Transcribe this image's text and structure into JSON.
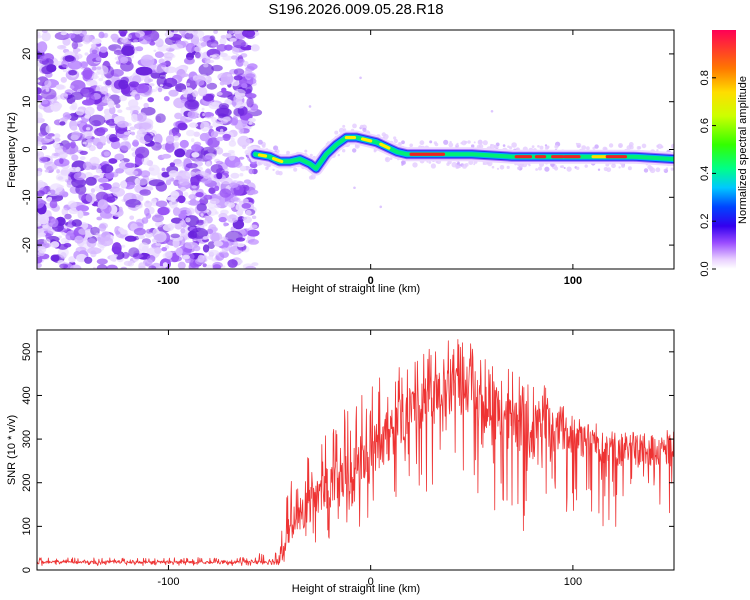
{
  "figure": {
    "title": "S196.2026.009.05.28.R18"
  },
  "chart_data": [
    {
      "type": "heatmap",
      "name": "spectrogram",
      "xlabel": "Height of straight line (km)",
      "ylabel": "Frequency (Hz)",
      "xlim": [
        -165,
        150
      ],
      "ylim": [
        -25,
        25
      ],
      "xticks": [
        -100,
        0,
        100
      ],
      "yticks": [
        -20,
        -10,
        0,
        10,
        20
      ],
      "noise_region_x": [
        -165,
        -57
      ],
      "track": {
        "x": [
          -57,
          -50,
          -45,
          -40,
          -35,
          -30,
          -27,
          -22,
          -17,
          -12,
          -7,
          -2,
          3,
          8,
          13,
          18,
          30,
          50,
          70,
          90,
          110,
          130,
          150
        ],
        "freq": [
          -1,
          -1.5,
          -2.5,
          -2.5,
          -2,
          -3,
          -4,
          -1,
          1,
          2.5,
          2.5,
          2,
          1.5,
          0.5,
          -0.5,
          -1,
          -1,
          -1,
          -1.5,
          -1.5,
          -1.5,
          -1.5,
          -2
        ]
      },
      "colorbar": {
        "label": "Normalized spectral amplitude",
        "range": [
          0,
          1
        ],
        "ticks": [
          "0.0",
          "0.2",
          "0.4",
          "0.6",
          "0.8"
        ]
      }
    },
    {
      "type": "line",
      "name": "snr",
      "xlabel": "Height of straight line (km)",
      "ylabel": "SNR (10 * v/v)",
      "xlim": [
        -165,
        150
      ],
      "ylim": [
        0,
        550
      ],
      "xticks": [
        -100,
        0,
        100
      ],
      "yticks": [
        0,
        100,
        200,
        300,
        400,
        500
      ],
      "color": "#ee3333",
      "envelope": {
        "x": [
          -165,
          -100,
          -60,
          -45,
          -40,
          -30,
          -20,
          -10,
          0,
          10,
          20,
          30,
          40,
          50,
          55,
          60,
          70,
          80,
          85,
          90,
          100,
          110,
          120,
          130,
          140,
          150
        ],
        "baseline": [
          18,
          18,
          18,
          20,
          100,
          150,
          190,
          220,
          260,
          310,
          370,
          390,
          400,
          410,
          380,
          360,
          340,
          310,
          350,
          320,
          310,
          290,
          280,
          270,
          270,
          275
        ],
        "peak": [
          28,
          28,
          30,
          60,
          220,
          290,
          340,
          380,
          420,
          470,
          500,
          510,
          530,
          540,
          520,
          470,
          460,
          420,
          430,
          400,
          360,
          340,
          320,
          320,
          320,
          330
        ],
        "trough": [
          10,
          10,
          10,
          10,
          20,
          50,
          60,
          80,
          100,
          150,
          180,
          180,
          170,
          200,
          150,
          120,
          100,
          80,
          100,
          120,
          100,
          90,
          90,
          90,
          90,
          90
        ]
      }
    }
  ]
}
